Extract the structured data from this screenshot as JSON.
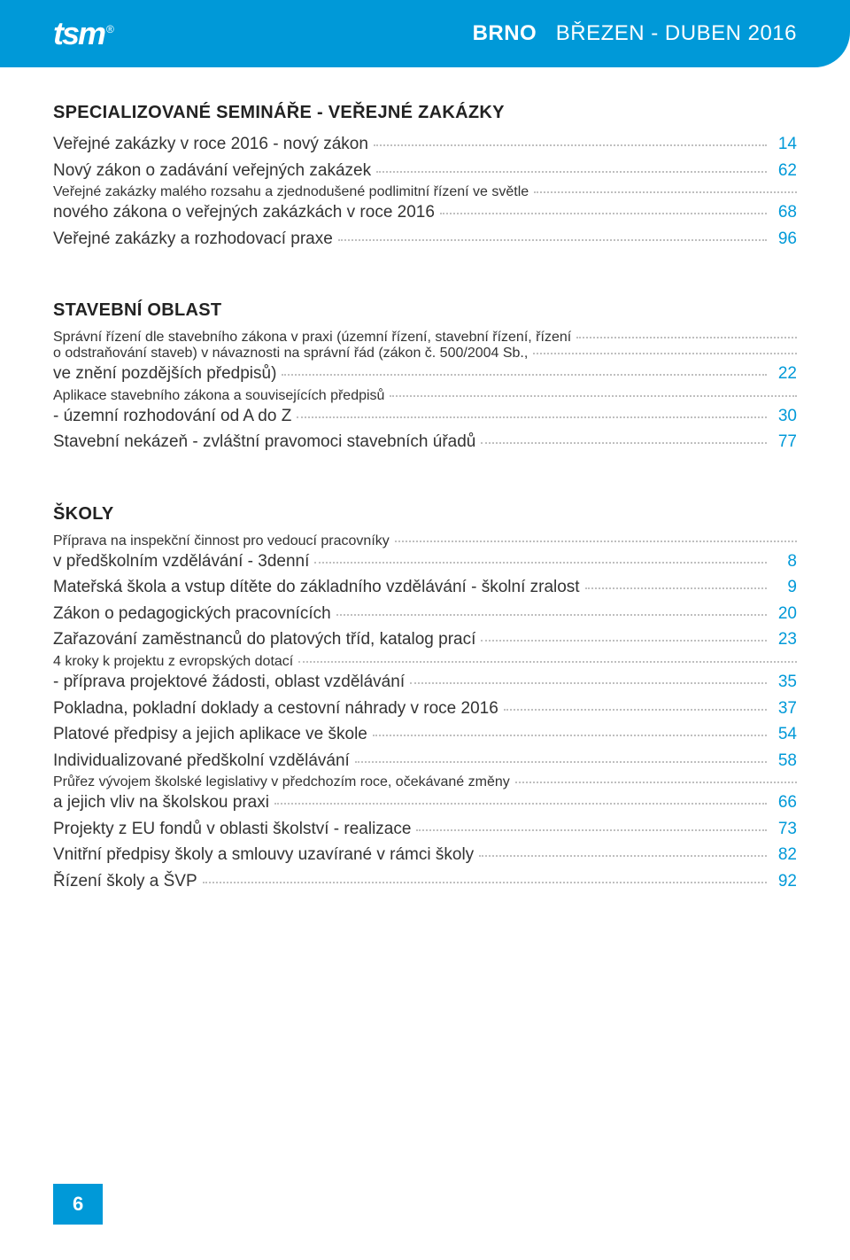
{
  "header": {
    "logo_text": "tsm",
    "trademark": "®",
    "city": "BRNO",
    "period": "BŘEZEN - DUBEN 2016"
  },
  "sections": [
    {
      "title": "SPECIALIZOVANÉ SEMINÁŘE - VEŘEJNÉ ZAKÁZKY",
      "items": [
        {
          "lines": [
            "Veřejné zakázky v roce 2016 - nový zákon"
          ],
          "page": "14"
        },
        {
          "lines": [
            "Nový zákon o zadávání veřejných zakázek"
          ],
          "page": "62"
        },
        {
          "lines": [
            "Veřejné zakázky malého rozsahu a zjednodušené podlimitní řízení ve světle",
            "nového zákona o veřejných zakázkách v roce 2016"
          ],
          "page": "68"
        },
        {
          "lines": [
            "Veřejné zakázky a rozhodovací praxe"
          ],
          "page": "96"
        }
      ]
    },
    {
      "title": "STAVEBNÍ OBLAST",
      "items": [
        {
          "lines": [
            "Správní řízení dle stavebního zákona v praxi (územní řízení, stavební řízení, řízení",
            "o odstraňování staveb) v návaznosti na správní řád (zákon č. 500/2004 Sb.,",
            "ve znění pozdějších předpisů)"
          ],
          "page": "22"
        },
        {
          "lines": [
            "Aplikace stavebního zákona a souvisejících předpisů",
            "- územní rozhodování od A do Z"
          ],
          "page": "30"
        },
        {
          "lines": [
            "Stavební nekázeň - zvláštní pravomoci stavebních úřadů"
          ],
          "page": "77"
        }
      ]
    },
    {
      "title": "ŠKOLY",
      "items": [
        {
          "lines": [
            "Příprava na inspekční činnost pro vedoucí pracovníky",
            "v předškolním vzdělávání - 3denní"
          ],
          "page": "8"
        },
        {
          "lines": [
            "Mateřská škola a vstup dítěte do základního vzdělávání - školní zralost"
          ],
          "page": "9"
        },
        {
          "lines": [
            "Zákon o pedagogických pracovnících"
          ],
          "page": "20"
        },
        {
          "lines": [
            "Zařazování zaměstnanců do platových tříd, katalog prací"
          ],
          "page": "23"
        },
        {
          "lines": [
            "4 kroky k projektu z evropských dotací",
            "- příprava projektové žádosti, oblast vzdělávání"
          ],
          "page": "35"
        },
        {
          "lines": [
            "Pokladna, pokladní doklady a cestovní náhrady v roce 2016"
          ],
          "page": "37"
        },
        {
          "lines": [
            "Platové předpisy a jejich aplikace ve škole"
          ],
          "page": "54"
        },
        {
          "lines": [
            "Individualizované předškolní vzdělávání"
          ],
          "page": "58"
        },
        {
          "lines": [
            "Průřez vývojem školské legislativy v předchozím roce, očekávané změny",
            "a jejich vliv na školskou praxi"
          ],
          "page": "66"
        },
        {
          "lines": [
            "Projekty z EU fondů v oblasti školství - realizace"
          ],
          "page": "73"
        },
        {
          "lines": [
            "Vnitřní předpisy školy a smlouvy uzavírané v rámci školy"
          ],
          "page": "82"
        },
        {
          "lines": [
            "Řízení školy a ŠVP"
          ],
          "page": "92"
        }
      ]
    }
  ],
  "footer_page": "6",
  "colors": {
    "primary": "#0099d8",
    "text": "#333333",
    "dots": "#bfbfbf",
    "white": "#ffffff"
  }
}
